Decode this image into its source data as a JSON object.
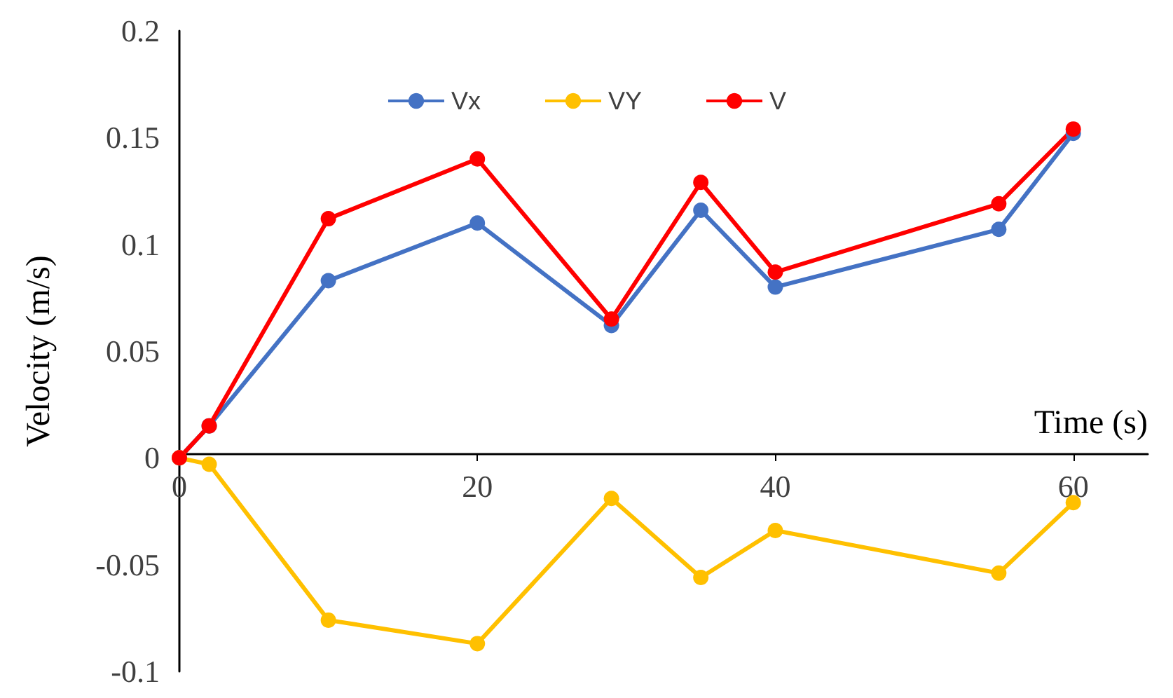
{
  "chart_data": {
    "type": "line",
    "xlabel": "Time (s)",
    "ylabel": "Velocity (m/s)",
    "x": [
      0,
      2,
      10,
      20,
      29,
      35,
      40,
      55,
      60
    ],
    "series": [
      {
        "name": "Vx",
        "color": "#4472c4",
        "values": [
          0,
          0.015,
          0.083,
          0.11,
          0.062,
          0.116,
          0.08,
          0.107,
          0.152
        ]
      },
      {
        "name": "VY",
        "color": "#ffc000",
        "values": [
          0,
          -0.003,
          -0.076,
          -0.087,
          -0.019,
          -0.056,
          -0.034,
          -0.054,
          -0.021
        ]
      },
      {
        "name": "V",
        "color": "#ff0000",
        "values": [
          0,
          0.015,
          0.112,
          0.14,
          0.065,
          0.129,
          0.087,
          0.119,
          0.154
        ]
      }
    ],
    "xlim": [
      0,
      65
    ],
    "xticks": [
      0,
      20,
      40,
      60
    ],
    "ylim": [
      -0.1,
      0.2
    ],
    "yticks": [
      -0.1,
      -0.05,
      0,
      0.05,
      0.1,
      0.15,
      0.2
    ],
    "legend": "top",
    "marker": "circle",
    "line_style": "solid"
  }
}
